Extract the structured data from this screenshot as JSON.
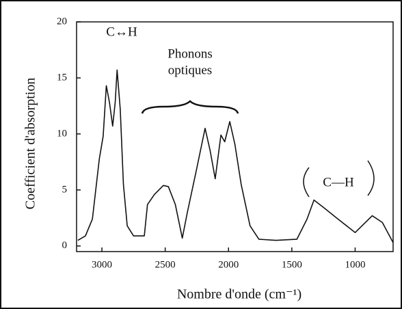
{
  "chart_data": {
    "type": "line",
    "xlabel": "Nombre d'onde (cm⁻¹)",
    "ylabel": "Coefficient d'absorption",
    "annotations": [
      "C↔H",
      "Phonons",
      "optiques",
      "C—H"
    ],
    "series": [
      {
        "name": "absorption",
        "color": "#111111",
        "x": [
          3190,
          3130,
          3075,
          3020,
          2990,
          2965,
          2940,
          2915,
          2895,
          2880,
          2855,
          2830,
          2800,
          2750,
          2665,
          2640,
          2585,
          2515,
          2475,
          2420,
          2365,
          2325,
          2255,
          2185,
          2145,
          2105,
          2060,
          2030,
          1990,
          1950,
          1900,
          1830,
          1760,
          1625,
          1460,
          1380,
          1325,
          1245,
          1135,
          1000,
          865,
          785,
          700
        ],
        "values": [
          0.5,
          0.9,
          2.4,
          7.8,
          9.8,
          14.3,
          12.8,
          10.7,
          12.8,
          15.7,
          12.2,
          5.5,
          1.8,
          0.9,
          0.9,
          3.7,
          4.6,
          5.4,
          5.3,
          3.7,
          0.7,
          3.0,
          6.7,
          10.5,
          8.5,
          6.0,
          9.9,
          9.3,
          11.1,
          9.1,
          5.5,
          1.8,
          0.6,
          0.5,
          0.6,
          2.4,
          4.1,
          3.4,
          2.4,
          1.2,
          2.7,
          2.1,
          0.3
        ]
      }
    ],
    "xlim": [
      3200,
      700
    ],
    "xticks": [
      3000,
      2500,
      2000,
      1500,
      1000
    ],
    "ylim": [
      -0.5,
      20
    ],
    "yticks": [
      0,
      5,
      10,
      15,
      20
    ]
  }
}
